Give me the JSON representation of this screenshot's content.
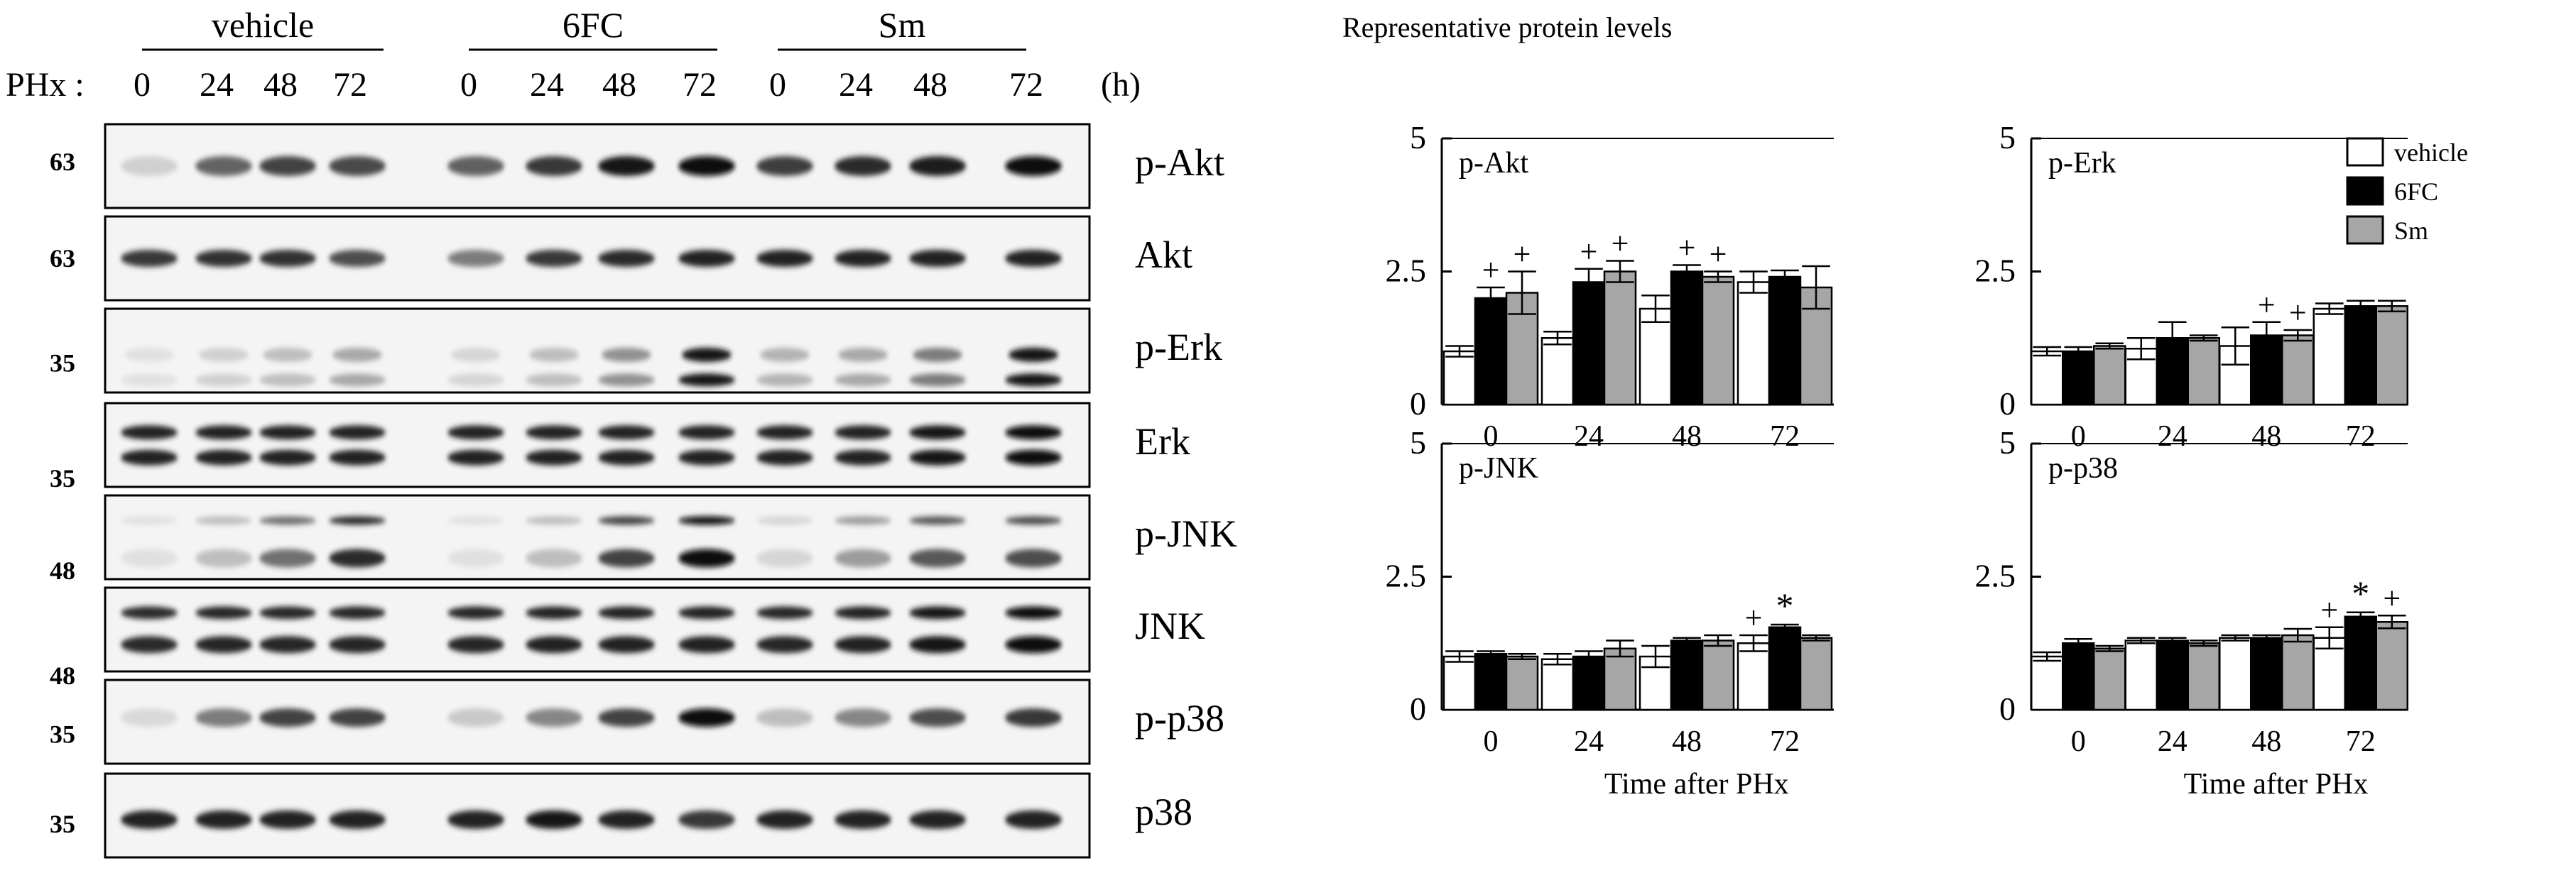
{
  "western_blot": {
    "groups": [
      "vehicle",
      "6FC",
      "Sm"
    ],
    "phx_label": "PHx :",
    "time_unit": "(h)",
    "lane_times": [
      "0",
      "24",
      "48",
      "72",
      "0",
      "24",
      "48",
      "72",
      "0",
      "24",
      "48",
      "72"
    ],
    "rows": [
      {
        "label": "p-Akt",
        "mw": "63"
      },
      {
        "label": "Akt",
        "mw": "63"
      },
      {
        "label": "p-Erk",
        "mw": "35"
      },
      {
        "label": "Erk",
        "mw": "35"
      },
      {
        "label": "p-JNK",
        "mw": "48"
      },
      {
        "label": "JNK",
        "mw": "48"
      },
      {
        "label": "p-p38",
        "mw": "35"
      },
      {
        "label": "p38",
        "mw": "35"
      }
    ]
  },
  "chart_data": [
    {
      "type": "bar",
      "figure_title": "Representative protein levels",
      "title": "p-Akt",
      "categories": [
        "0",
        "24",
        "48",
        "72"
      ],
      "ylim": [
        0,
        5
      ],
      "yticks": [
        "0",
        "2.5",
        "5"
      ],
      "xlabel": "",
      "series": [
        {
          "name": "vehicle",
          "values": [
            1.0,
            1.25,
            1.8,
            2.3
          ],
          "errors": [
            0.1,
            0.12,
            0.25,
            0.2
          ]
        },
        {
          "name": "6FC",
          "values": [
            2.0,
            2.3,
            2.5,
            2.4
          ],
          "errors": [
            0.2,
            0.25,
            0.12,
            0.12
          ]
        },
        {
          "name": "Sm",
          "values": [
            2.1,
            2.5,
            2.4,
            2.2
          ],
          "errors": [
            0.4,
            0.2,
            0.1,
            0.4
          ]
        }
      ],
      "annotations": [
        {
          "category": "0",
          "series": "6FC",
          "text": "+"
        },
        {
          "category": "0",
          "series": "Sm",
          "text": "+"
        },
        {
          "category": "24",
          "series": "6FC",
          "text": "+"
        },
        {
          "category": "24",
          "series": "Sm",
          "text": "+"
        },
        {
          "category": "48",
          "series": "6FC",
          "text": "+"
        },
        {
          "category": "48",
          "series": "Sm",
          "text": "+"
        }
      ]
    },
    {
      "type": "bar",
      "title": "p-Erk",
      "categories": [
        "0",
        "24",
        "48",
        "72"
      ],
      "ylim": [
        0,
        5
      ],
      "yticks": [
        "0",
        "2.5",
        "5"
      ],
      "xlabel": "",
      "legend": [
        "vehicle",
        "6FC",
        "Sm"
      ],
      "series": [
        {
          "name": "vehicle",
          "values": [
            1.0,
            1.05,
            1.1,
            1.8
          ],
          "errors": [
            0.08,
            0.2,
            0.35,
            0.1
          ]
        },
        {
          "name": "6FC",
          "values": [
            1.0,
            1.25,
            1.3,
            1.85
          ],
          "errors": [
            0.08,
            0.3,
            0.25,
            0.1
          ]
        },
        {
          "name": "Sm",
          "values": [
            1.1,
            1.25,
            1.3,
            1.85
          ],
          "errors": [
            0.05,
            0.05,
            0.1,
            0.1
          ]
        }
      ],
      "annotations": [
        {
          "category": "48",
          "series": "6FC",
          "text": "+"
        },
        {
          "category": "48",
          "series": "Sm",
          "text": "+"
        }
      ]
    },
    {
      "type": "bar",
      "title": "p-JNK",
      "categories": [
        "0",
        "24",
        "48",
        "72"
      ],
      "ylim": [
        0,
        5
      ],
      "yticks": [
        "0",
        "2.5",
        "5"
      ],
      "xlabel": "Time after PHx",
      "series": [
        {
          "name": "vehicle",
          "values": [
            1.0,
            0.95,
            1.0,
            1.25
          ],
          "errors": [
            0.1,
            0.1,
            0.2,
            0.15
          ]
        },
        {
          "name": "6FC",
          "values": [
            1.05,
            1.0,
            1.3,
            1.55
          ],
          "errors": [
            0.05,
            0.1,
            0.05,
            0.05
          ]
        },
        {
          "name": "Sm",
          "values": [
            1.0,
            1.15,
            1.3,
            1.35
          ],
          "errors": [
            0.05,
            0.15,
            0.1,
            0.05
          ]
        }
      ],
      "annotations": [
        {
          "category": "72",
          "series": "vehicle",
          "text": "+"
        },
        {
          "category": "72",
          "series": "6FC",
          "text": "*"
        }
      ]
    },
    {
      "type": "bar",
      "title": "p-p38",
      "categories": [
        "0",
        "24",
        "48",
        "72"
      ],
      "ylim": [
        0,
        5
      ],
      "yticks": [
        "0",
        "2.5",
        "5"
      ],
      "xlabel": "Time after PHx",
      "series": [
        {
          "name": "vehicle",
          "values": [
            1.0,
            1.3,
            1.35,
            1.35
          ],
          "errors": [
            0.08,
            0.05,
            0.05,
            0.2
          ]
        },
        {
          "name": "6FC",
          "values": [
            1.25,
            1.3,
            1.35,
            1.75
          ],
          "errors": [
            0.08,
            0.05,
            0.05,
            0.08
          ]
        },
        {
          "name": "Sm",
          "values": [
            1.15,
            1.25,
            1.4,
            1.65
          ],
          "errors": [
            0.05,
            0.05,
            0.12,
            0.12
          ]
        }
      ],
      "annotations": [
        {
          "category": "72",
          "series": "vehicle",
          "text": "+"
        },
        {
          "category": "72",
          "series": "6FC",
          "text": "*"
        },
        {
          "category": "72",
          "series": "Sm",
          "text": "+"
        }
      ]
    }
  ],
  "colors": {
    "vehicle": "#ffffff",
    "6FC": "#000000",
    "Sm": "#a6a6a6"
  }
}
